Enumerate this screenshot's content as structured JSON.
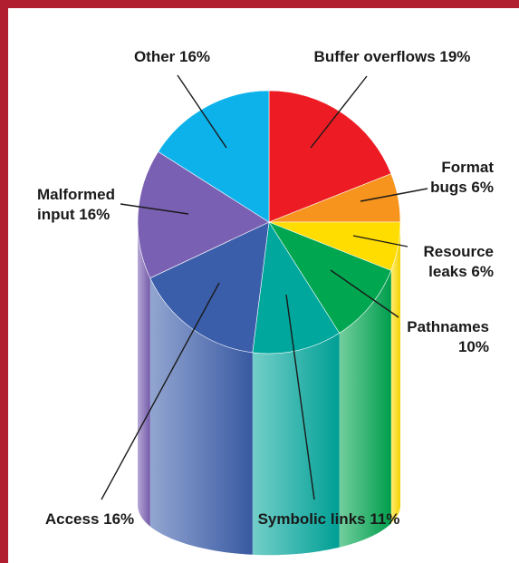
{
  "chart_data": {
    "type": "pie",
    "style": "3d-cylinder",
    "title": "",
    "unit": "%",
    "slices": [
      {
        "label": "Buffer overflows 19%",
        "lines": [
          "Buffer overflows 19%"
        ],
        "value": 19,
        "color": "#ed1c24"
      },
      {
        "label": "Format bugs 6%",
        "lines": [
          "Format",
          "bugs 6%"
        ],
        "value": 6,
        "color": "#f7941d"
      },
      {
        "label": "Resource leaks 6%",
        "lines": [
          "Resource",
          "leaks 6%"
        ],
        "value": 6,
        "color": "#ffdd00"
      },
      {
        "label": "Pathnames 10%",
        "lines": [
          "Pathnames",
          "10%"
        ],
        "value": 10,
        "color": "#00a650"
      },
      {
        "label": "Symbolic links 11%",
        "lines": [
          "Symbolic links 11%"
        ],
        "value": 11,
        "color": "#00a79d"
      },
      {
        "label": "Access 16%",
        "lines": [
          "Access 16%"
        ],
        "value": 16,
        "color": "#3b5eab"
      },
      {
        "label": "Malformed input 16%",
        "lines": [
          "Malformed",
          "input 16%"
        ],
        "value": 16,
        "color": "#7a60b3"
      },
      {
        "label": "Other 16%",
        "lines": [
          "Other 16%"
        ],
        "value": 16,
        "color": "#0db2ea"
      }
    ]
  },
  "colors": {
    "frame_border": "#b01e2f",
    "text": "#1a1a1a"
  }
}
